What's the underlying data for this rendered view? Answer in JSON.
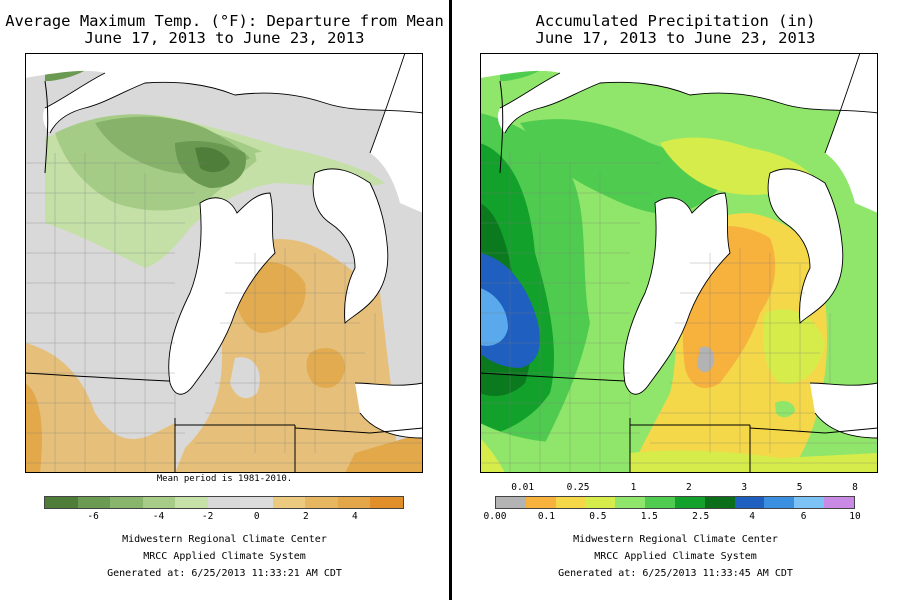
{
  "left_panel": {
    "title_line1": "Average Maximum Temp. (°F): Departure from Mean",
    "title_line2": "June 17, 2013 to June 23, 2013",
    "note": "Mean period is 1981-2010.",
    "legend": {
      "colors": [
        "#4e7d3a",
        "#6b9a52",
        "#88b46b",
        "#a6cc88",
        "#c6e2a8",
        "#d9d9d9",
        "#dcdcdc",
        "#ebc97e",
        "#e6b760",
        "#e3a74a",
        "#e08f2a"
      ],
      "labels": [
        "-6",
        "-4",
        "-2",
        "0",
        "2",
        "4"
      ]
    },
    "credit_line1": "Midwestern Regional Climate Center",
    "credit_line2": "MRCC Applied Climate System",
    "credit_line3": "Generated at: 6/25/2013 11:33:21 AM CDT"
  },
  "right_panel": {
    "title_line1": "Accumulated Precipitation (in)",
    "title_line2": "June 17, 2013 to June 23, 2013",
    "legend": {
      "colors": [
        "#b3b3b3",
        "#f7b13d",
        "#f4d84a",
        "#d6ec4a",
        "#8fe66a",
        "#4fcc4f",
        "#12a12a",
        "#0a6e1a",
        "#1f5fbf",
        "#3b8fe0",
        "#7cc2f5",
        "#c98ae6"
      ],
      "labels_top": [
        "0.01",
        "0.25",
        "1",
        "2",
        "3",
        "5",
        "8"
      ],
      "labels_bottom": [
        "0.00",
        "0.1",
        "0.5",
        "1.5",
        "2.5",
        "4",
        "6",
        "10"
      ]
    },
    "credit_line1": "Midwestern Regional Climate Center",
    "credit_line2": "MRCC Applied Climate System",
    "credit_line3": "Generated at: 6/25/2013 11:33:45 AM CDT"
  }
}
